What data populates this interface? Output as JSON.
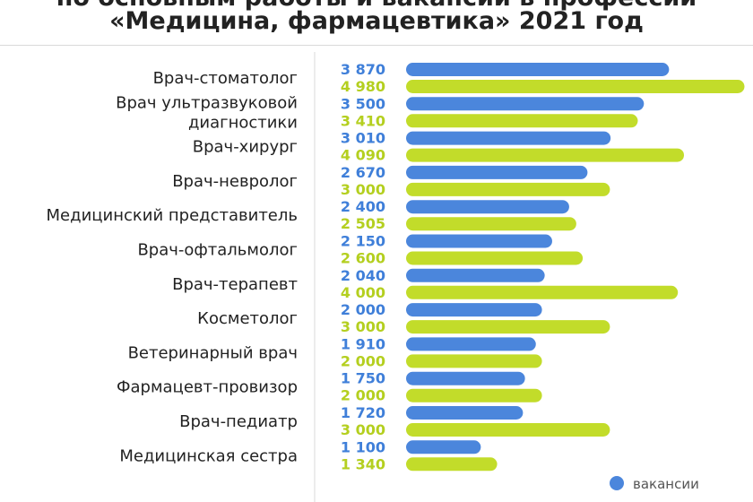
{
  "header": {
    "title_line_1": "по основным работы и вакансии в профессии",
    "title_line_2": "«Медицина, фармацевтика» 2021 год"
  },
  "legend": {
    "vacancies_label": "вакансии"
  },
  "colors": {
    "vacancies": "#4b86dc",
    "salary": "#c2dc2a",
    "vacancies_text": "#3f7fd9",
    "salary_text": "#b4cf1f"
  },
  "chart_data": {
    "type": "bar",
    "orientation": "horizontal",
    "categories": [
      [
        "Врач-стоматолог"
      ],
      [
        "Врач ультразвуковой",
        "диагностики"
      ],
      [
        "Врач-хирург"
      ],
      [
        "Врач-невролог"
      ],
      [
        "Медицинский представитель"
      ],
      [
        "Врач-офтальмолог"
      ],
      [
        "Врач-терапевт"
      ],
      [
        "Косметолог"
      ],
      [
        "Ветеринарный врач"
      ],
      [
        "Фармацевт-провизор"
      ],
      [
        "Врач-педиатр"
      ],
      [
        "Медицинская сестра"
      ]
    ],
    "series": [
      {
        "name": "вакансии",
        "values": [
          3870,
          3500,
          3010,
          2670,
          2400,
          2150,
          2040,
          2000,
          1910,
          1750,
          1720,
          1100
        ],
        "labels": [
          "3 870",
          "3 500",
          "3 010",
          "2 670",
          "2 400",
          "2 150",
          "2 040",
          "2 000",
          "1 910",
          "1 750",
          "1 720",
          "1 100"
        ]
      },
      {
        "values": [
          4980,
          3410,
          4090,
          3000,
          2505,
          2600,
          4000,
          3000,
          2000,
          2000,
          3000,
          1340
        ],
        "labels": [
          "4 980",
          "3 410",
          "4 090",
          "3 000",
          "2 505",
          "2 600",
          "4 000",
          "3 000",
          "2 000",
          "2 000",
          "3 000",
          "1 340"
        ]
      }
    ],
    "xlim": [
      0,
      5000
    ],
    "grid": false,
    "legend_position": "bottom-right"
  }
}
